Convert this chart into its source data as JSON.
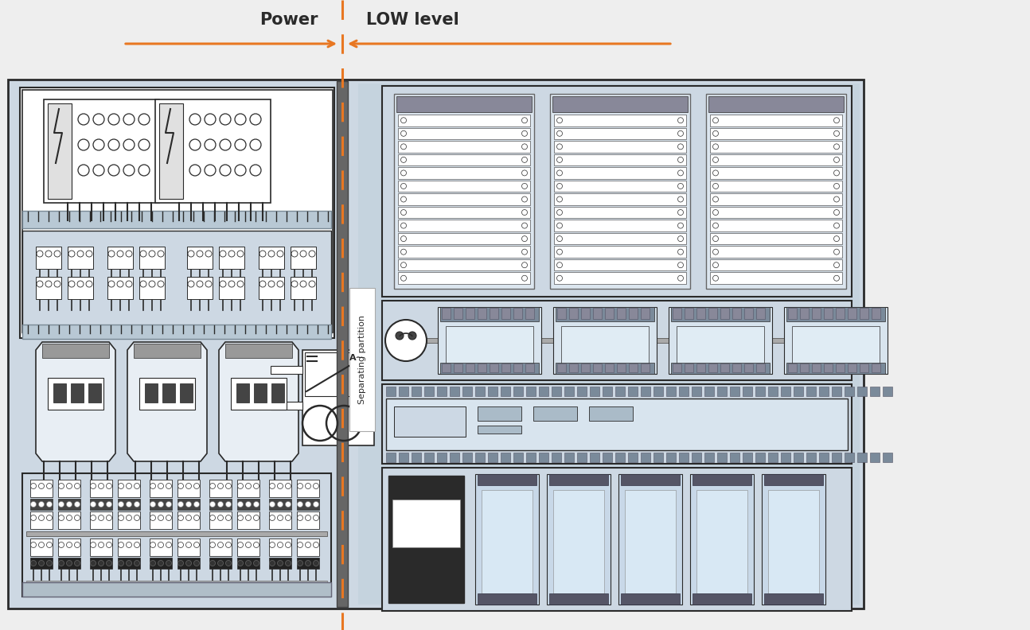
{
  "bg_color": "#eeeeee",
  "orange": "#E87722",
  "dark": "#2a2a2a",
  "white": "#ffffff",
  "panel_bg_left": "#cdd8e3",
  "panel_bg_right": "#c5d3de",
  "sep_bg": "#d8e4ed",
  "mid_gray": "#888888",
  "light_gray": "#cccccc",
  "steel_blue": "#b0bec5",
  "title_power": "Power",
  "title_low": "LOW level",
  "sep_label": "Separating partition",
  "fig_w": 12.94,
  "fig_h": 7.92,
  "dpi": 100
}
